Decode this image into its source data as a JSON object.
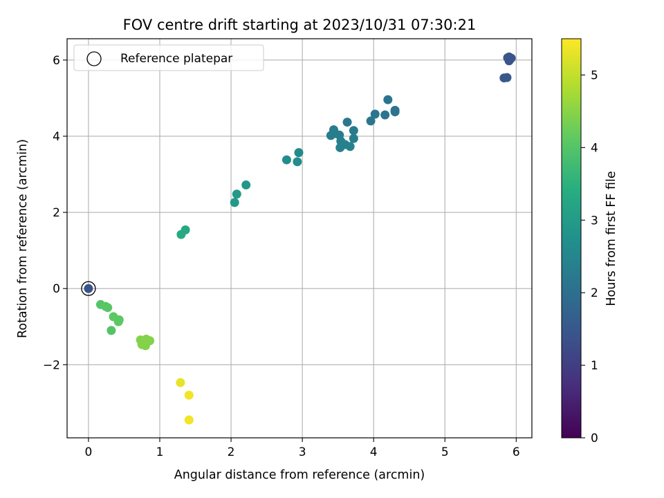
{
  "chart_data": {
    "type": "scatter",
    "title": "FOV centre drift starting at 2023/10/31 07:30:21",
    "xlabel": "Angular distance from reference (arcmin)",
    "ylabel": "Rotation from reference (arcmin)",
    "xlim": [
      -0.3,
      6.22
    ],
    "ylim": [
      -3.92,
      6.56
    ],
    "xticks": [
      0,
      1,
      2,
      3,
      4,
      5,
      6
    ],
    "yticks": [
      -2,
      0,
      2,
      4,
      6
    ],
    "ytick_labels": [
      "−2",
      "0",
      "2",
      "4",
      "6"
    ],
    "grid": true,
    "legend": {
      "position": "top-left",
      "entries": [
        "Reference platepar"
      ]
    },
    "reference_point": {
      "x": 0,
      "y": 0
    },
    "colorbar": {
      "label": "Hours from first FF file",
      "range": [
        0,
        5.5
      ],
      "ticks": [
        0,
        1,
        2,
        3,
        4,
        5
      ],
      "colormap": "viridis"
    },
    "points": [
      {
        "x": 0.0,
        "y": 0.0,
        "t": 1.4
      },
      {
        "x": 5.9,
        "y": 6.08,
        "t": 1.45
      },
      {
        "x": 5.93,
        "y": 6.05,
        "t": 1.45
      },
      {
        "x": 5.9,
        "y": 5.98,
        "t": 1.45
      },
      {
        "x": 5.88,
        "y": 6.06,
        "t": 1.45
      },
      {
        "x": 5.83,
        "y": 5.53,
        "t": 1.5
      },
      {
        "x": 5.87,
        "y": 5.54,
        "t": 1.5
      },
      {
        "x": 4.2,
        "y": 4.96,
        "t": 2.1
      },
      {
        "x": 4.3,
        "y": 4.68,
        "t": 2.1
      },
      {
        "x": 4.3,
        "y": 4.64,
        "t": 2.1
      },
      {
        "x": 4.02,
        "y": 4.58,
        "t": 2.15
      },
      {
        "x": 4.16,
        "y": 4.56,
        "t": 2.15
      },
      {
        "x": 3.96,
        "y": 4.4,
        "t": 2.15
      },
      {
        "x": 3.63,
        "y": 4.37,
        "t": 2.2
      },
      {
        "x": 3.44,
        "y": 4.17,
        "t": 2.3
      },
      {
        "x": 3.4,
        "y": 4.02,
        "t": 2.3
      },
      {
        "x": 3.46,
        "y": 4.07,
        "t": 2.3
      },
      {
        "x": 3.52,
        "y": 4.03,
        "t": 2.3
      },
      {
        "x": 3.72,
        "y": 4.15,
        "t": 2.25
      },
      {
        "x": 3.72,
        "y": 3.94,
        "t": 2.3
      },
      {
        "x": 3.54,
        "y": 3.87,
        "t": 2.35
      },
      {
        "x": 3.6,
        "y": 3.78,
        "t": 2.4
      },
      {
        "x": 3.53,
        "y": 3.7,
        "t": 2.4
      },
      {
        "x": 3.67,
        "y": 3.73,
        "t": 2.4
      },
      {
        "x": 2.95,
        "y": 3.57,
        "t": 2.6
      },
      {
        "x": 2.78,
        "y": 3.38,
        "t": 2.65
      },
      {
        "x": 2.93,
        "y": 3.33,
        "t": 2.65
      },
      {
        "x": 2.21,
        "y": 2.72,
        "t": 2.9
      },
      {
        "x": 2.08,
        "y": 2.48,
        "t": 2.95
      },
      {
        "x": 2.05,
        "y": 2.26,
        "t": 2.95
      },
      {
        "x": 1.36,
        "y": 1.54,
        "t": 3.3
      },
      {
        "x": 1.3,
        "y": 1.42,
        "t": 3.35
      },
      {
        "x": 0.17,
        "y": -0.42,
        "t": 4.0
      },
      {
        "x": 0.24,
        "y": -0.47,
        "t": 4.05
      },
      {
        "x": 0.27,
        "y": -0.5,
        "t": 4.05
      },
      {
        "x": 0.35,
        "y": -0.74,
        "t": 4.1
      },
      {
        "x": 0.43,
        "y": -0.82,
        "t": 4.1
      },
      {
        "x": 0.42,
        "y": -0.87,
        "t": 4.1
      },
      {
        "x": 0.32,
        "y": -1.1,
        "t": 4.0
      },
      {
        "x": 0.73,
        "y": -1.35,
        "t": 4.45
      },
      {
        "x": 0.81,
        "y": -1.33,
        "t": 4.45
      },
      {
        "x": 0.86,
        "y": -1.37,
        "t": 4.45
      },
      {
        "x": 0.77,
        "y": -1.42,
        "t": 4.45
      },
      {
        "x": 0.75,
        "y": -1.47,
        "t": 4.45
      },
      {
        "x": 0.8,
        "y": -1.5,
        "t": 4.45
      },
      {
        "x": 1.29,
        "y": -2.47,
        "t": 5.3
      },
      {
        "x": 1.41,
        "y": -2.8,
        "t": 5.4
      },
      {
        "x": 1.41,
        "y": -3.45,
        "t": 5.4
      }
    ]
  }
}
